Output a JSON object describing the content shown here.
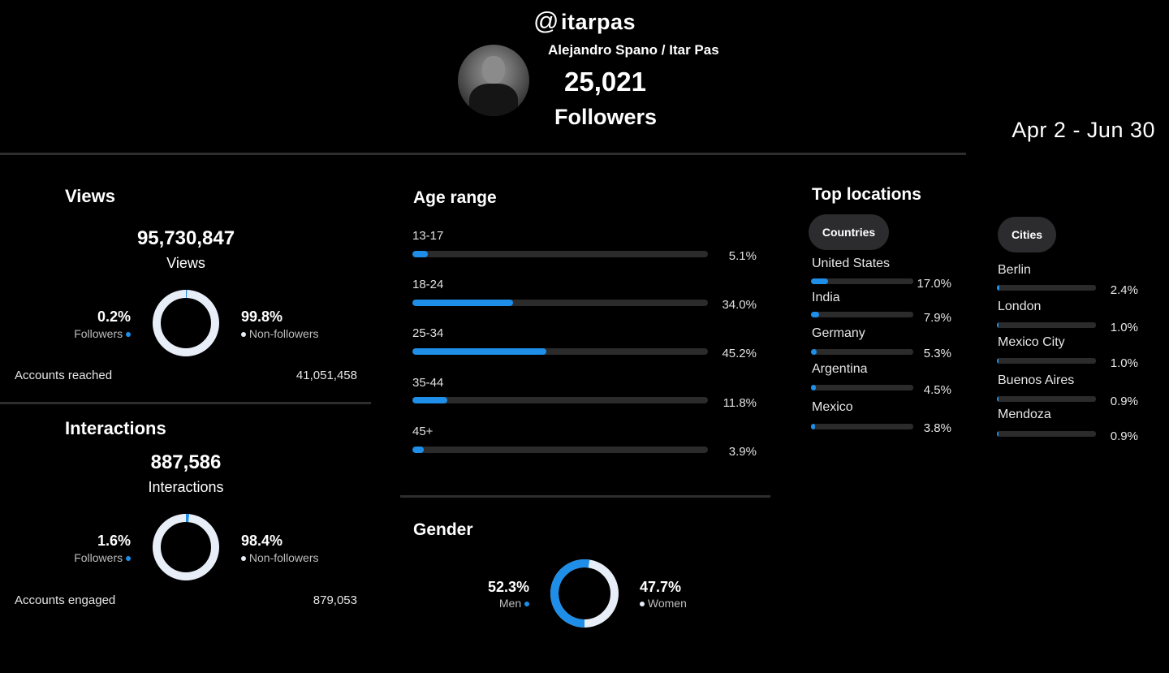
{
  "profile": {
    "at_symbol": "@",
    "handle": "itarpas",
    "display_name": "Alejandro Spano / Itar Pas",
    "followers_count": "25,021",
    "followers_label": "Followers",
    "date_range": "Apr 2 - Jun 30"
  },
  "views": {
    "title": "Views",
    "total": "95,730,847",
    "total_label": "Views",
    "followers_pct": "0.2%",
    "followers_label": "Followers",
    "followers_fraction": 0.002,
    "nonfollowers_pct": "99.8%",
    "nonfollowers_label": "Non-followers",
    "accounts_label": "Accounts reached",
    "accounts_value": "41,051,458"
  },
  "interactions": {
    "title": "Interactions",
    "total": "887,586",
    "total_label": "Interactions",
    "followers_pct": "1.6%",
    "followers_label": "Followers",
    "followers_fraction": 0.016,
    "nonfollowers_pct": "98.4%",
    "nonfollowers_label": "Non-followers",
    "accounts_label": "Accounts engaged",
    "accounts_value": "879,053"
  },
  "age": {
    "title": "Age range",
    "rows": [
      {
        "label": "13-17",
        "value": "5.1%",
        "fraction": 0.051
      },
      {
        "label": "18-24",
        "value": "34.0%",
        "fraction": 0.34
      },
      {
        "label": "25-34",
        "value": "45.2%",
        "fraction": 0.452
      },
      {
        "label": "35-44",
        "value": "11.8%",
        "fraction": 0.118
      },
      {
        "label": "45+",
        "value": "3.9%",
        "fraction": 0.039
      }
    ]
  },
  "gender": {
    "title": "Gender",
    "men_pct": "52.3%",
    "men_label": "Men",
    "men_fraction": 0.523,
    "women_pct": "47.7%",
    "women_label": "Women"
  },
  "locations": {
    "title": "Top locations",
    "countries_tab": "Countries",
    "cities_tab": "Cities",
    "countries": [
      {
        "label": "United States",
        "value": "17.0%",
        "fraction": 0.17
      },
      {
        "label": "India",
        "value": "7.9%",
        "fraction": 0.079
      },
      {
        "label": "Germany",
        "value": "5.3%",
        "fraction": 0.053
      },
      {
        "label": "Argentina",
        "value": "4.5%",
        "fraction": 0.045
      },
      {
        "label": "Mexico",
        "value": "3.8%",
        "fraction": 0.038
      }
    ],
    "cities": [
      {
        "label": "Berlin",
        "value": "2.4%",
        "fraction": 0.024
      },
      {
        "label": "London",
        "value": "1.0%",
        "fraction": 0.01
      },
      {
        "label": "Mexico City",
        "value": "1.0%",
        "fraction": 0.01
      },
      {
        "label": "Buenos Aires",
        "value": "0.9%",
        "fraction": 0.009
      },
      {
        "label": "Mendoza",
        "value": "0.9%",
        "fraction": 0.009
      }
    ]
  },
  "colors": {
    "accent": "#1f8ee8",
    "donut_light": "#e8eef7",
    "track": "#2b2b2b"
  }
}
